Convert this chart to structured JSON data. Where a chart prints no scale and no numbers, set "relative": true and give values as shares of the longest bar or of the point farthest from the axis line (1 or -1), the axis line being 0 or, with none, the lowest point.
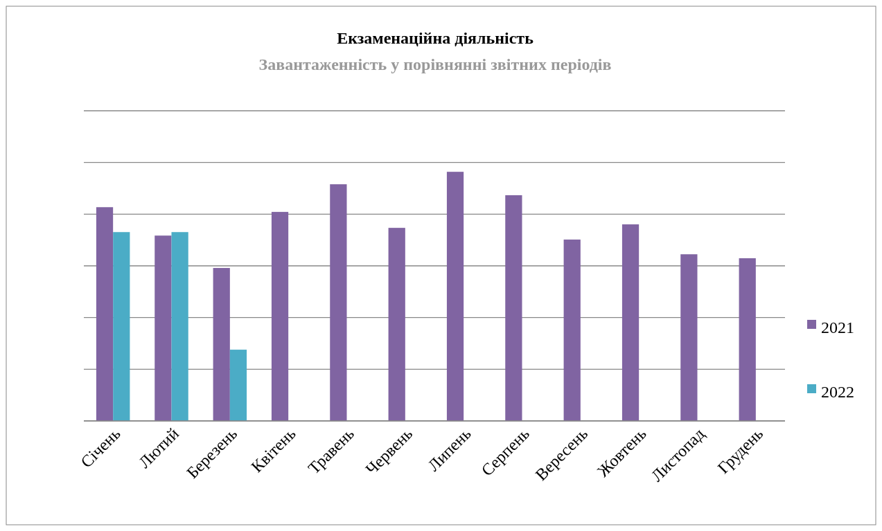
{
  "chart_data": {
    "type": "bar",
    "title": "Екзаменаційна діяльність",
    "subtitle": "Завантаженність у порівнянні звітних періодів",
    "relative": true,
    "grid": true,
    "legend": "right",
    "categories": [
      "Січень",
      "Лютий",
      "Березень",
      "Квітень",
      "Травень",
      "Червень",
      "Липень",
      "Серпень",
      "Вересень",
      "Жовтень",
      "Листопад",
      "Грудень"
    ],
    "series": [
      {
        "name": "2021",
        "color": "#8064a2",
        "values": [
          0.858,
          0.744,
          0.614,
          0.839,
          0.95,
          0.775,
          1,
          0.906,
          0.728,
          0.789,
          0.669,
          0.653
        ]
      },
      {
        "name": "2022",
        "color": "#4bacc6",
        "values": [
          0.758,
          0.758,
          0.286,
          null,
          null,
          null,
          null,
          null,
          null,
          null,
          null,
          null
        ]
      }
    ]
  }
}
